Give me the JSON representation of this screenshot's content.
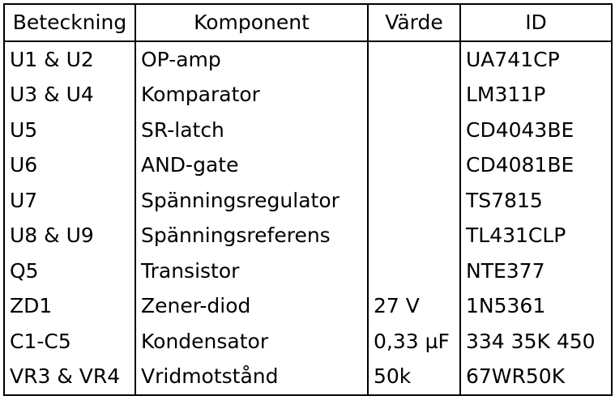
{
  "table": {
    "headers": [
      "Beteckning",
      "Komponent",
      "Värde",
      "ID"
    ],
    "rows": [
      [
        "U1 & U2",
        "OP-amp",
        "",
        "UA741CP"
      ],
      [
        "U3 & U4",
        "Komparator",
        "",
        "LM311P"
      ],
      [
        "U5",
        "SR-latch",
        "",
        "CD4043BE"
      ],
      [
        "U6",
        "AND-gate",
        "",
        "CD4081BE"
      ],
      [
        "U7",
        "Spänningsregulator",
        "",
        "TS7815"
      ],
      [
        "U8 & U9",
        "Spänningsreferens",
        "",
        "TL431CLP"
      ],
      [
        "Q5",
        "Transistor",
        "",
        "NTE377"
      ],
      [
        "ZD1",
        "Zener-diod",
        "27 V",
        "1N5361"
      ],
      [
        "C1-C5",
        "Kondensator",
        "0,33 µF",
        "334 35K 450"
      ],
      [
        "VR3 & VR4",
        "Vridmotstånd",
        "50k",
        "67WR50K"
      ]
    ]
  }
}
